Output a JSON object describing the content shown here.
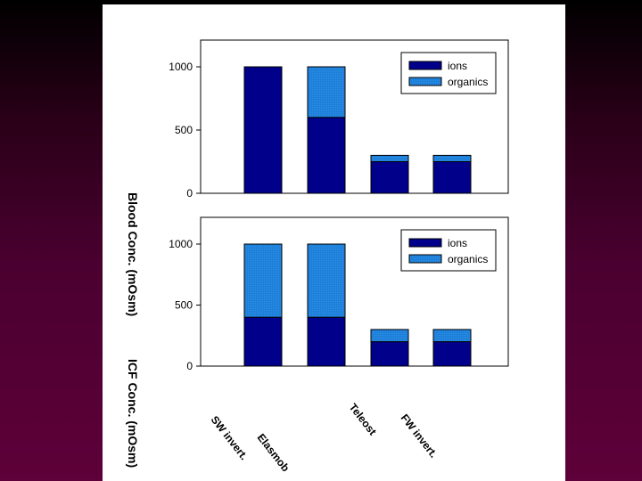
{
  "colors": {
    "background_top": "#000000",
    "background_bottom": "#5e0039",
    "panel": "#ffffff",
    "ions": "#00008b",
    "organics": "#1e7fd8"
  },
  "axis_labels": {
    "blood": "Blood Conc. (mOsm)",
    "icf": "ICF Conc. (mOsm)"
  },
  "category_labels": [
    "SW invert.",
    "Elasmob",
    "Teleost",
    "FW invert."
  ],
  "chart_data": [
    {
      "type": "bar",
      "stacked": true,
      "categories": [
        "SW invert.",
        "Elasmob",
        "Teleost",
        "FW invert."
      ],
      "series": [
        {
          "name": "ions",
          "values": [
            1000,
            600,
            250,
            250
          ]
        },
        {
          "name": "organics",
          "values": [
            0,
            400,
            50,
            50
          ]
        }
      ],
      "ylabel": "Blood Conc. (mOsm)",
      "ylim": [
        0,
        1000
      ],
      "yticks": [
        0,
        500,
        1000
      ],
      "legend": "top-right",
      "grid": false
    },
    {
      "type": "bar",
      "stacked": true,
      "categories": [
        "SW invert.",
        "Elasmob",
        "Teleost",
        "FW invert."
      ],
      "series": [
        {
          "name": "ions",
          "values": [
            400,
            400,
            200,
            200
          ]
        },
        {
          "name": "organics",
          "values": [
            600,
            600,
            100,
            100
          ]
        }
      ],
      "ylabel": "ICF Conc. (mOsm)",
      "ylim": [
        0,
        1000
      ],
      "yticks": [
        0,
        500,
        1000
      ],
      "legend": "top-right",
      "grid": false
    }
  ]
}
